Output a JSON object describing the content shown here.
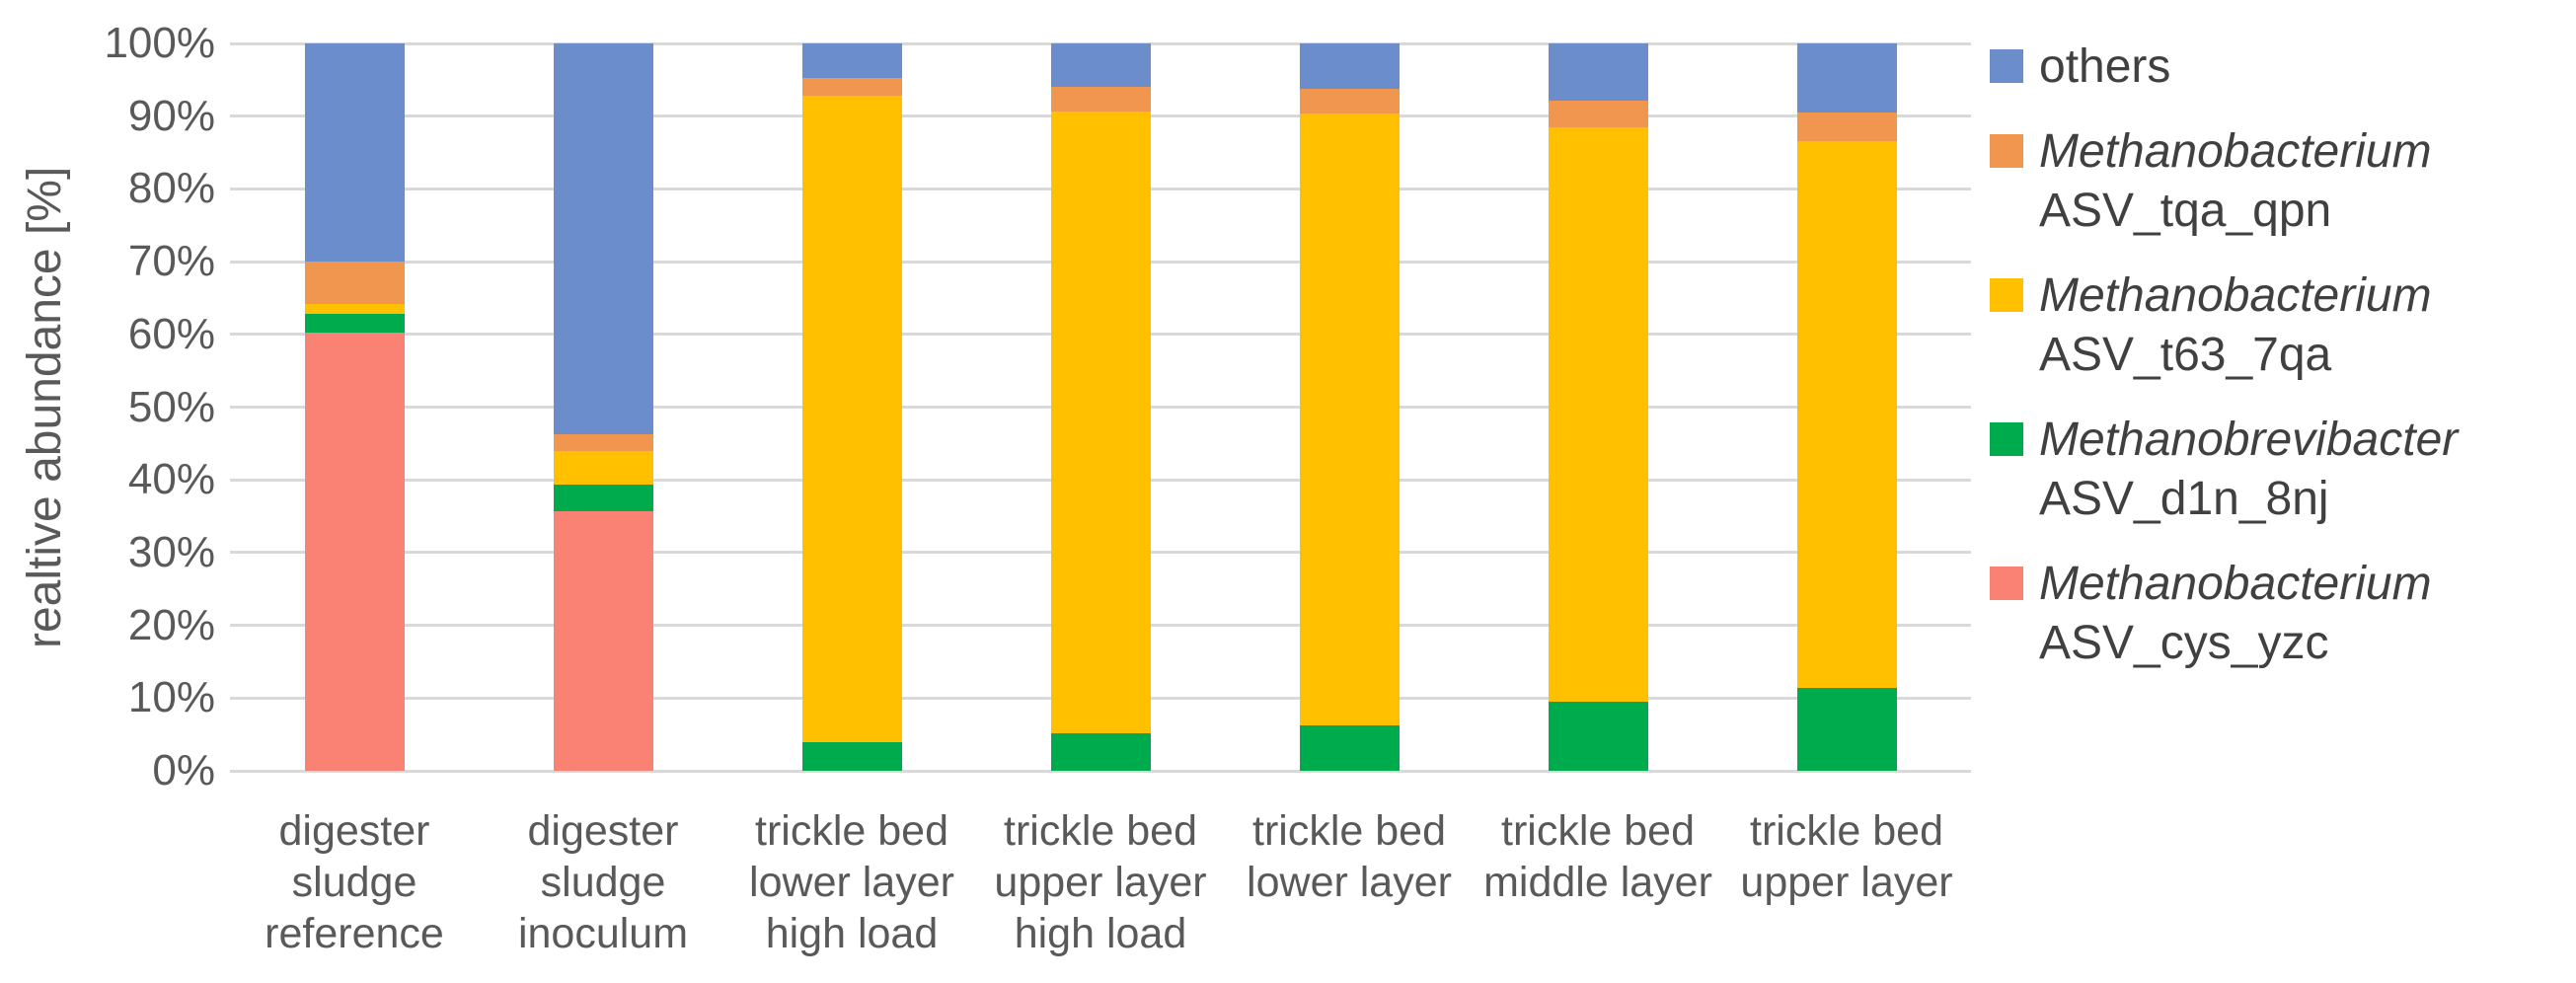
{
  "chart_data": {
    "type": "bar",
    "stacked": true,
    "title": "",
    "xlabel": "",
    "ylabel": "realtive abundance [%]",
    "ylim": [
      0,
      100
    ],
    "ytick_step": 10,
    "ytick_labels": [
      "0%",
      "10%",
      "20%",
      "30%",
      "40%",
      "50%",
      "60%",
      "70%",
      "80%",
      "90%",
      "100%"
    ],
    "grid": true,
    "legend_position": "right",
    "categories": [
      [
        "digester",
        "sludge",
        "reference"
      ],
      [
        "digester",
        "sludge",
        "inoculum"
      ],
      [
        "trickle bed",
        "lower layer",
        "high load"
      ],
      [
        "trickle bed",
        "upper layer",
        "high load"
      ],
      [
        "trickle bed",
        "lower layer"
      ],
      [
        "trickle bed",
        "middle layer"
      ],
      [
        "trickle bed",
        "upper layer"
      ]
    ],
    "series": [
      {
        "name": "Methanobacterium ASV_cys_yzc",
        "color": "#F98274",
        "values": [
          60.3,
          35.7,
          0,
          0,
          0,
          0,
          0
        ]
      },
      {
        "name": "Methanobrevibacter ASV_d1n_8nj",
        "color": "#00AB4E",
        "values": [
          2.5,
          3.7,
          4.0,
          5.2,
          6.3,
          9.5,
          11.4
        ]
      },
      {
        "name": "Methanobacterium ASV_t63_7qa",
        "color": "#FFC000",
        "values": [
          1.4,
          4.6,
          88.8,
          85.4,
          84.1,
          79.0,
          75.2
        ]
      },
      {
        "name": "Methanobacterium ASV_tqa_qpn",
        "color": "#F0964F",
        "values": [
          5.8,
          2.3,
          2.5,
          3.4,
          3.4,
          3.7,
          3.9
        ]
      },
      {
        "name": "others",
        "color": "#6B8DCB",
        "values": [
          30.0,
          53.7,
          4.7,
          6.0,
          6.2,
          7.8,
          9.5
        ]
      }
    ],
    "legend": [
      {
        "color": "#6B8DCB",
        "lines": [
          {
            "text": "others",
            "italic": false
          }
        ]
      },
      {
        "color": "#F0964F",
        "lines": [
          {
            "text": "Methanobacterium",
            "italic": true
          },
          {
            "text": "ASV_tqa_qpn",
            "italic": false
          }
        ]
      },
      {
        "color": "#FFC000",
        "lines": [
          {
            "text": "Methanobacterium",
            "italic": true
          },
          {
            "text": "ASV_t63_7qa",
            "italic": false
          }
        ]
      },
      {
        "color": "#00AB4E",
        "lines": [
          {
            "text": "Methanobrevibacter",
            "italic": true
          },
          {
            "text": "ASV_d1n_8nj",
            "italic": false
          }
        ]
      },
      {
        "color": "#F98274",
        "lines": [
          {
            "text": "Methanobacterium",
            "italic": true
          },
          {
            "text": "ASV_cys_yzc",
            "italic": false
          }
        ]
      }
    ],
    "colors": {
      "gridline": "#D9D9D9",
      "axis_text": "#595959",
      "legend_text": "#404040"
    }
  }
}
